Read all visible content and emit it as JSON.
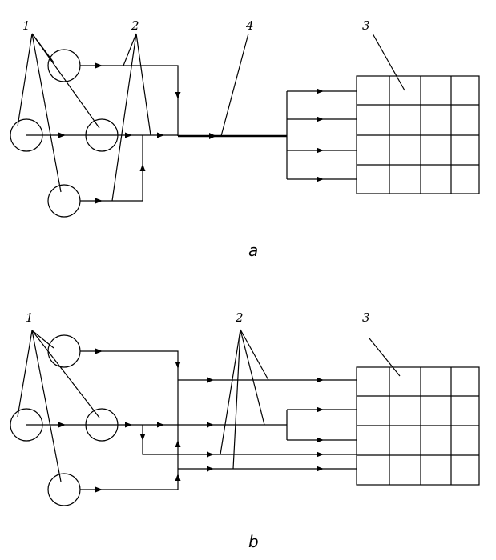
{
  "panels": [
    {
      "id": "a",
      "label": "a",
      "callouts": {
        "sources": "1",
        "lines": "2",
        "matrix": "3",
        "trunk": "4"
      }
    },
    {
      "id": "b",
      "label": "b",
      "callouts": {
        "sources": "1",
        "lines": "2",
        "matrix": "3"
      }
    }
  ],
  "matrix": {
    "rows": 4,
    "cols": 4
  },
  "colors": {
    "stroke": "#000000",
    "background": "#ffffff"
  }
}
